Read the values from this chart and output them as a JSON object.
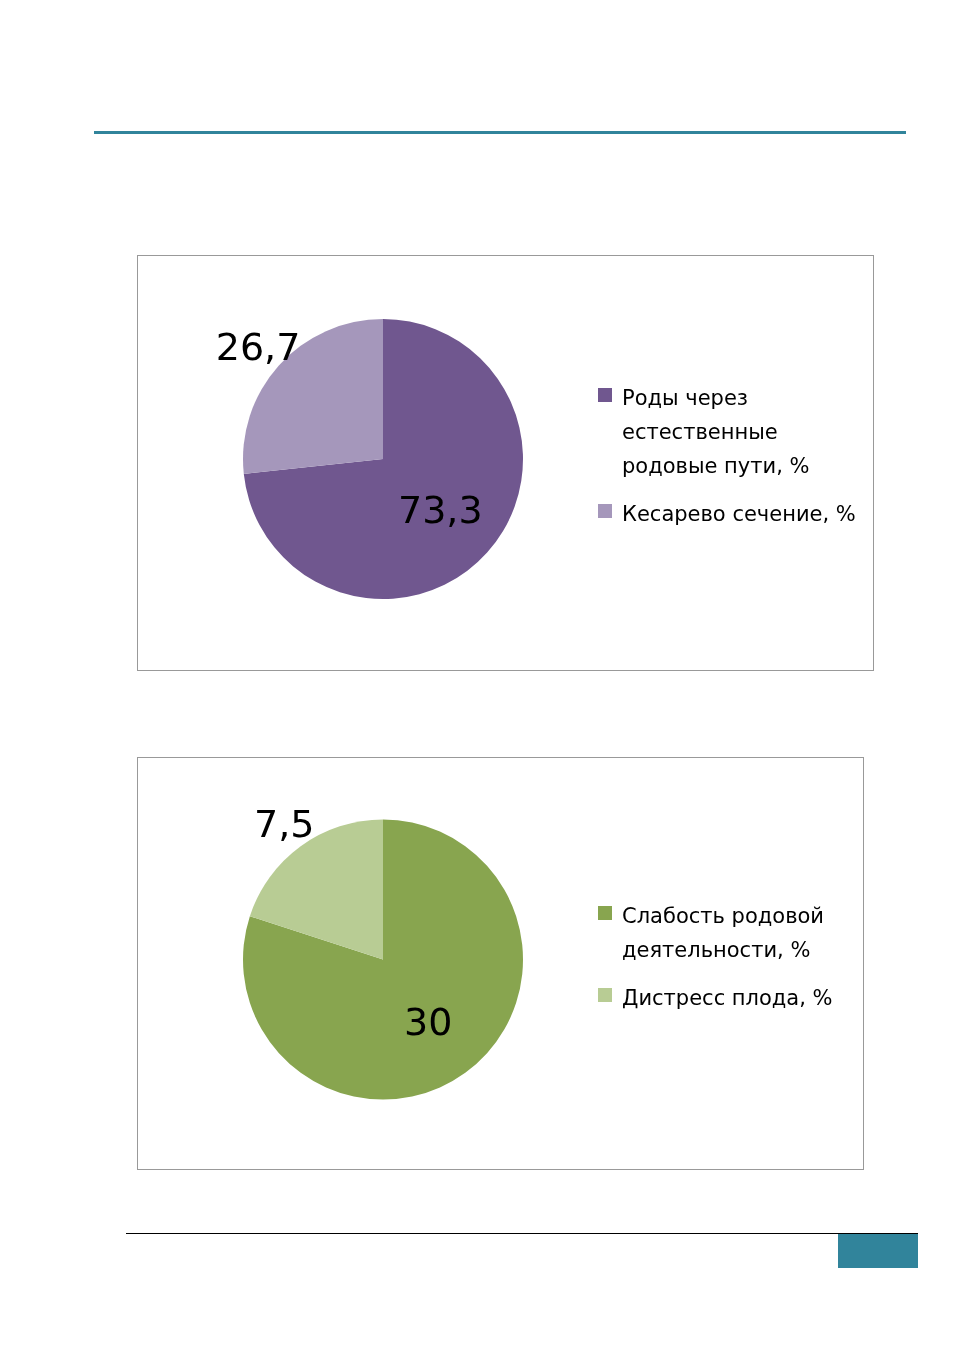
{
  "chart_data": [
    {
      "type": "pie",
      "categories": [
        "Роды через естественные родовые пути, %",
        "Кесарево сечение, %"
      ],
      "values": [
        73.3,
        26.7
      ],
      "value_labels": [
        "73,3",
        "26,7"
      ],
      "colors": [
        "#70578f",
        "#a597bb"
      ],
      "legend": "right"
    },
    {
      "type": "pie",
      "categories": [
        "Слабость родовой деятельности, %",
        "Дистресс плода, %"
      ],
      "values": [
        30,
        7.5
      ],
      "value_labels": [
        "30",
        "7,5"
      ],
      "colors": [
        "#88a54f",
        "#b8cc94"
      ],
      "legend": "right"
    }
  ]
}
